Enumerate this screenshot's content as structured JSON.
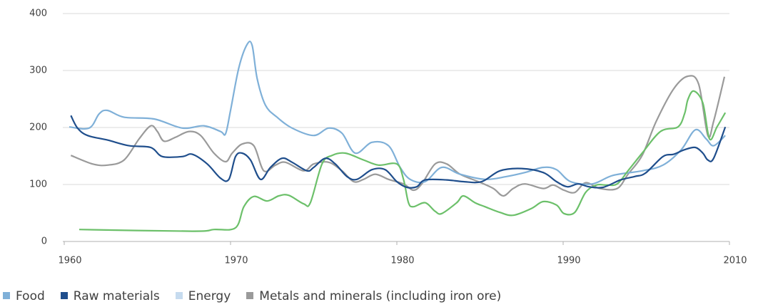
{
  "chart_data": {
    "type": "line",
    "xlim": [
      1960,
      2010
    ],
    "xticks": [
      1960,
      1970,
      1980,
      1990,
      2010
    ],
    "ylim": [
      0,
      400
    ],
    "yticks": [
      0,
      100,
      200,
      300,
      400
    ],
    "grid": true,
    "legend": "bottom",
    "series": [
      {
        "name": "Food",
        "color": "#7fb0d8",
        "x": [
          1960.3,
          1961.5,
          1962.1,
          1962.6,
          1963.6,
          1965.4,
          1967.1,
          1968.4,
          1969.4,
          1969.7,
          1970.0,
          1970.5,
          1971.0,
          1971.3,
          1971.6,
          1972.1,
          1972.8,
          1973.7,
          1975.0,
          1975.9,
          1976.7,
          1977.5,
          1978.5,
          1979.5,
          1980.2,
          1980.8,
          1981.7,
          1982.7,
          1983.8,
          1985.3,
          1986.6,
          1987.7,
          1988.8,
          1989.6,
          1990.9,
          1993.5,
          1996.0,
          1999.5,
          2002.0,
          2004.2,
          2005.9,
          2007.2,
          2008.1,
          2009.5
        ],
        "values": [
          201,
          199,
          224,
          230,
          218,
          215,
          199,
          203,
          193,
          189,
          230,
          305,
          346,
          344,
          286,
          239,
          218,
          199,
          186,
          199,
          190,
          155,
          174,
          168,
          130,
          109,
          105,
          130,
          118,
          109,
          114,
          121,
          130,
          126,
          105,
          101,
          116,
          124,
          134,
          161,
          196,
          180,
          168,
          186
        ]
      },
      {
        "name": "Raw materials",
        "color": "#1f4e8c",
        "x": [
          1960.4,
          1960.8,
          1961.4,
          1962.6,
          1963.9,
          1965.2,
          1965.9,
          1967.1,
          1967.7,
          1968.6,
          1969.4,
          1969.9,
          1970.3,
          1970.7,
          1971.2,
          1971.8,
          1972.4,
          1973.1,
          1973.7,
          1974.6,
          1975.0,
          1975.7,
          1976.3,
          1977.0,
          1977.6,
          1978.5,
          1979.3,
          1980.0,
          1980.6,
          1981.2,
          1981.7,
          1983.0,
          1984.0,
          1985.1,
          1986.2,
          1987.5,
          1988.8,
          1989.6,
          1990.5,
          1991.8,
          1993.1,
          1994.8,
          1996.9,
          1998.6,
          1999.9,
          2002.0,
          2003.3,
          2004.6,
          2005.9,
          2006.8,
          2007.4,
          2008.1,
          2009.5
        ],
        "values": [
          221,
          199,
          186,
          178,
          168,
          165,
          149,
          149,
          153,
          136,
          111,
          109,
          149,
          155,
          143,
          109,
          130,
          146,
          139,
          124,
          130,
          146,
          136,
          114,
          109,
          126,
          126,
          105,
          95,
          96,
          108,
          108,
          105,
          105,
          124,
          128,
          121,
          105,
          96,
          101,
          96,
          95,
          108,
          114,
          120,
          149,
          153,
          161,
          165,
          155,
          143,
          146,
          201
        ]
      },
      {
        "name": "Energy",
        "color": "#6cc06a",
        "legend_color": "#c6dbef",
        "x": [
          1960.9,
          1967.7,
          1969.0,
          1970.3,
          1970.8,
          1971.4,
          1972.2,
          1972.9,
          1973.5,
          1974.4,
          1974.8,
          1975.5,
          1976.1,
          1976.9,
          1978.0,
          1978.9,
          1980.0,
          1980.4,
          1980.7,
          1981.0,
          1981.7,
          1982.3,
          1982.7,
          1983.6,
          1984.0,
          1984.7,
          1985.3,
          1986.2,
          1987.0,
          1988.1,
          1988.8,
          1989.6,
          1990.1,
          1991.4,
          1992.7,
          1994.0,
          1995.2,
          1996.5,
          1997.8,
          1999.5,
          2001.7,
          2003.8,
          2004.6,
          2005.0,
          2005.7,
          2006.8,
          2007.6,
          2008.5,
          2009.5
        ],
        "values": [
          21,
          18,
          21,
          24,
          61,
          79,
          71,
          80,
          81,
          66,
          68,
          136,
          151,
          155,
          143,
          134,
          136,
          109,
          68,
          61,
          68,
          53,
          49,
          68,
          80,
          68,
          61,
          51,
          46,
          58,
          70,
          64,
          49,
          51,
          86,
          99,
          99,
          101,
          124,
          155,
          193,
          201,
          224,
          249,
          264,
          243,
          180,
          201,
          226
        ]
      },
      {
        "name": "Metals and minerals (including iron ore)",
        "color": "#9a9a9a",
        "x": [
          1960.4,
          1961.7,
          1962.6,
          1963.6,
          1964.5,
          1965.2,
          1965.6,
          1966.0,
          1966.7,
          1967.5,
          1968.2,
          1969.0,
          1969.7,
          1970.1,
          1970.7,
          1971.4,
          1972.0,
          1972.7,
          1973.3,
          1974.4,
          1975.0,
          1975.9,
          1976.7,
          1977.4,
          1978.0,
          1978.7,
          1979.5,
          1980.4,
          1981.0,
          1981.5,
          1982.3,
          1983.0,
          1983.8,
          1984.9,
          1985.8,
          1986.4,
          1987.0,
          1987.7,
          1988.8,
          1989.4,
          1990.1,
          1991.4,
          1992.7,
          1994.4,
          1996.5,
          1997.8,
          1999.5,
          2001.2,
          2003.3,
          2005.0,
          2006.3,
          2007.4,
          2008.1,
          2009.4
        ],
        "values": [
          151,
          136,
          134,
          143,
          180,
          203,
          193,
          176,
          183,
          193,
          186,
          155,
          140,
          155,
          171,
          168,
          124,
          134,
          139,
          124,
          136,
          139,
          124,
          105,
          109,
          118,
          109,
          101,
          90,
          101,
          136,
          136,
          118,
          105,
          93,
          80,
          93,
          101,
          93,
          99,
          90,
          86,
          103,
          93,
          93,
          118,
          151,
          211,
          268,
          290,
          276,
          186,
          211,
          289
        ]
      }
    ]
  }
}
